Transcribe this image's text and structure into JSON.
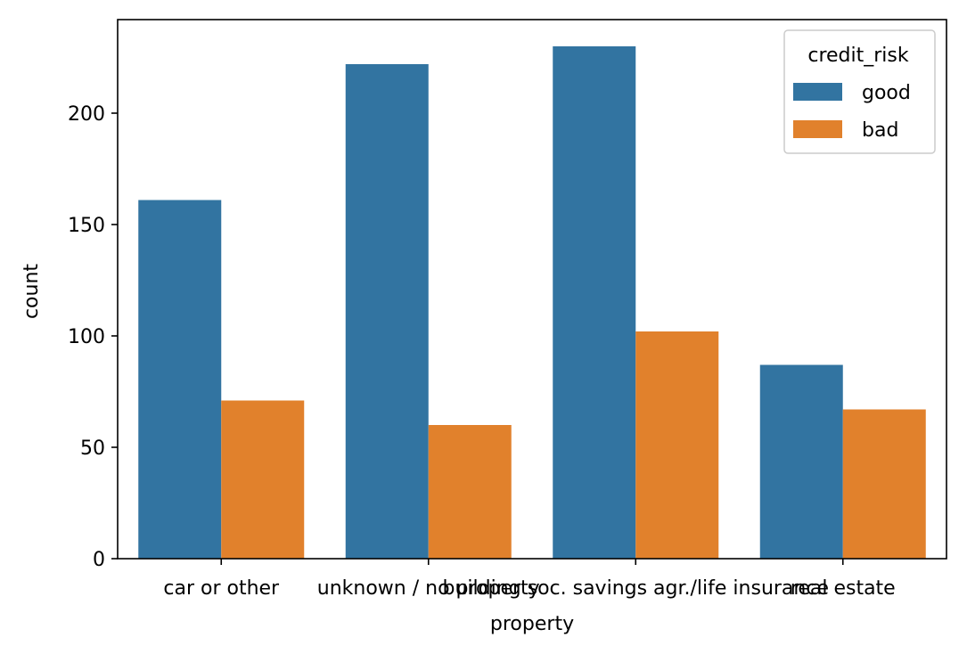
{
  "chart_data": {
    "type": "bar",
    "title": "",
    "xlabel": "property",
    "ylabel": "count",
    "categories": [
      "car or other",
      "unknown / no property",
      "building soc. savings agr./life insurance",
      "real estate"
    ],
    "series": [
      {
        "name": "good",
        "color": "#3274a1",
        "values": [
          161,
          222,
          230,
          87
        ]
      },
      {
        "name": "bad",
        "color": "#e1812c",
        "values": [
          71,
          60,
          102,
          67
        ]
      }
    ],
    "ylim": [
      0,
      242
    ],
    "yticks": [
      0,
      50,
      100,
      150,
      200
    ],
    "grid": false,
    "legend": {
      "title": "credit_risk",
      "position": "top-right"
    }
  }
}
